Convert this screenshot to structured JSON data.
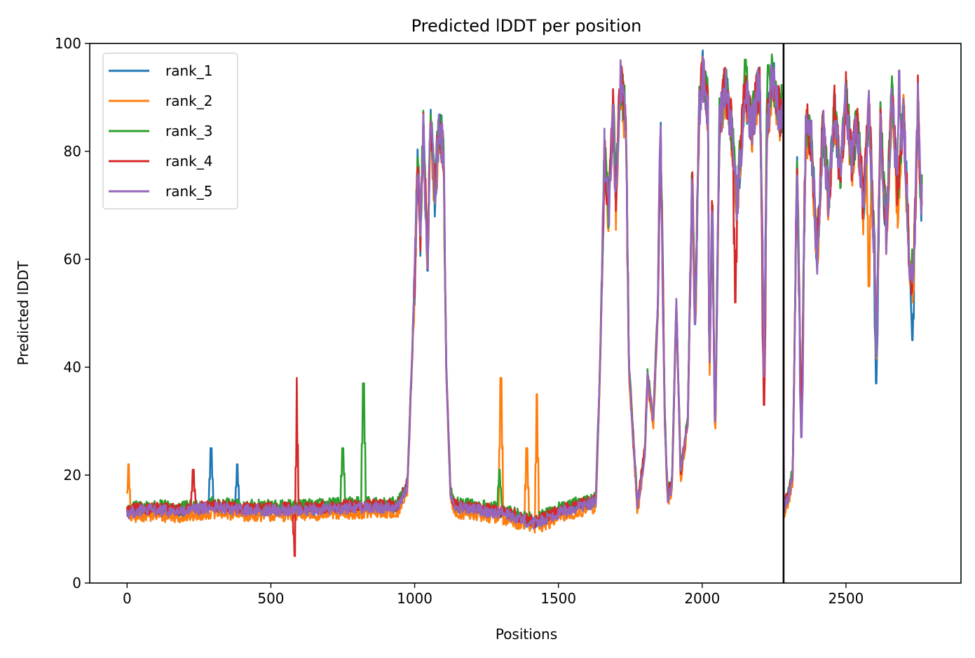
{
  "chart_data": {
    "type": "line",
    "title": "Predicted lDDT per position",
    "xlabel": "Positions",
    "ylabel": "Predicted lDDT",
    "xlim": [
      -130,
      2900
    ],
    "ylim": [
      0,
      100
    ],
    "xticks": [
      0,
      500,
      1000,
      1500,
      2000,
      2500
    ],
    "yticks": [
      0,
      20,
      40,
      60,
      80,
      100
    ],
    "grid": false,
    "legend_position": "top-left",
    "vertical_line_x": 2283,
    "series": [
      {
        "name": "rank_1",
        "color": "#1f77b4",
        "offset": 0.0,
        "spikes": [
          [
            292,
            25
          ],
          [
            383,
            22
          ],
          [
            2605,
            37
          ],
          [
            2731,
            45
          ]
        ]
      },
      {
        "name": "rank_2",
        "color": "#ff7f0e",
        "offset": -1.0,
        "spikes": [
          [
            5,
            22
          ],
          [
            1300,
            38
          ],
          [
            1425,
            35
          ],
          [
            1390,
            25
          ],
          [
            2580,
            55
          ]
        ]
      },
      {
        "name": "rank_3",
        "color": "#2ca02c",
        "offset": 0.9,
        "spikes": [
          [
            750,
            25
          ],
          [
            822,
            37
          ],
          [
            1295,
            21
          ],
          [
            2150,
            97
          ],
          [
            2230,
            96
          ]
        ]
      },
      {
        "name": "rank_4",
        "color": "#d62728",
        "offset": 0.4,
        "spikes": [
          [
            588,
            38
          ],
          [
            583,
            5
          ],
          [
            230,
            21
          ],
          [
            2115,
            52
          ],
          [
            2215,
            33
          ]
        ]
      },
      {
        "name": "rank_5",
        "color": "#9467bd",
        "offset": 0.0,
        "spikes": [
          [
            2685,
            95
          ],
          [
            2345,
            27
          ]
        ]
      }
    ],
    "profile": [
      [
        0,
        13
      ],
      [
        60,
        13.5
      ],
      [
        200,
        13.2
      ],
      [
        292,
        14
      ],
      [
        400,
        13.5
      ],
      [
        600,
        13.5
      ],
      [
        800,
        14
      ],
      [
        940,
        14
      ],
      [
        975,
        18
      ],
      [
        1000,
        55
      ],
      [
        1010,
        78
      ],
      [
        1020,
        65
      ],
      [
        1030,
        84
      ],
      [
        1045,
        58
      ],
      [
        1055,
        86
      ],
      [
        1070,
        72
      ],
      [
        1085,
        84
      ],
      [
        1100,
        80
      ],
      [
        1110,
        40
      ],
      [
        1125,
        16
      ],
      [
        1140,
        14
      ],
      [
        1300,
        13
      ],
      [
        1420,
        11
      ],
      [
        1500,
        13
      ],
      [
        1630,
        15
      ],
      [
        1645,
        40
      ],
      [
        1660,
        80
      ],
      [
        1675,
        68
      ],
      [
        1690,
        88
      ],
      [
        1700,
        70
      ],
      [
        1715,
        93
      ],
      [
        1735,
        85
      ],
      [
        1745,
        40
      ],
      [
        1775,
        14
      ],
      [
        1800,
        24
      ],
      [
        1810,
        38
      ],
      [
        1830,
        30
      ],
      [
        1845,
        50
      ],
      [
        1855,
        85
      ],
      [
        1870,
        30
      ],
      [
        1880,
        16
      ],
      [
        1895,
        18
      ],
      [
        1910,
        52
      ],
      [
        1925,
        20
      ],
      [
        1950,
        30
      ],
      [
        1965,
        76
      ],
      [
        1975,
        46
      ],
      [
        1990,
        88
      ],
      [
        2000,
        95
      ],
      [
        2020,
        88
      ],
      [
        2025,
        37
      ],
      [
        2035,
        70
      ],
      [
        2045,
        26
      ],
      [
        2060,
        85
      ],
      [
        2080,
        92
      ],
      [
        2100,
        85
      ],
      [
        2120,
        70
      ],
      [
        2150,
        92
      ],
      [
        2170,
        84
      ],
      [
        2200,
        93
      ],
      [
        2210,
        60
      ],
      [
        2215,
        34
      ],
      [
        2225,
        85
      ],
      [
        2245,
        94
      ],
      [
        2270,
        86
      ],
      [
        2282,
        88
      ],
      [
        2284,
        14
      ],
      [
        2300,
        16
      ],
      [
        2315,
        20
      ],
      [
        2330,
        78
      ],
      [
        2345,
        27
      ],
      [
        2360,
        85
      ],
      [
        2380,
        82
      ],
      [
        2400,
        60
      ],
      [
        2420,
        85
      ],
      [
        2440,
        70
      ],
      [
        2460,
        88
      ],
      [
        2480,
        75
      ],
      [
        2500,
        90
      ],
      [
        2520,
        78
      ],
      [
        2540,
        85
      ],
      [
        2560,
        70
      ],
      [
        2580,
        88
      ],
      [
        2600,
        60
      ],
      [
        2605,
        40
      ],
      [
        2620,
        85
      ],
      [
        2640,
        65
      ],
      [
        2660,
        90
      ],
      [
        2680,
        70
      ],
      [
        2700,
        88
      ],
      [
        2720,
        60
      ],
      [
        2735,
        55
      ],
      [
        2750,
        90
      ],
      [
        2760,
        70
      ],
      [
        2765,
        72
      ]
    ]
  }
}
